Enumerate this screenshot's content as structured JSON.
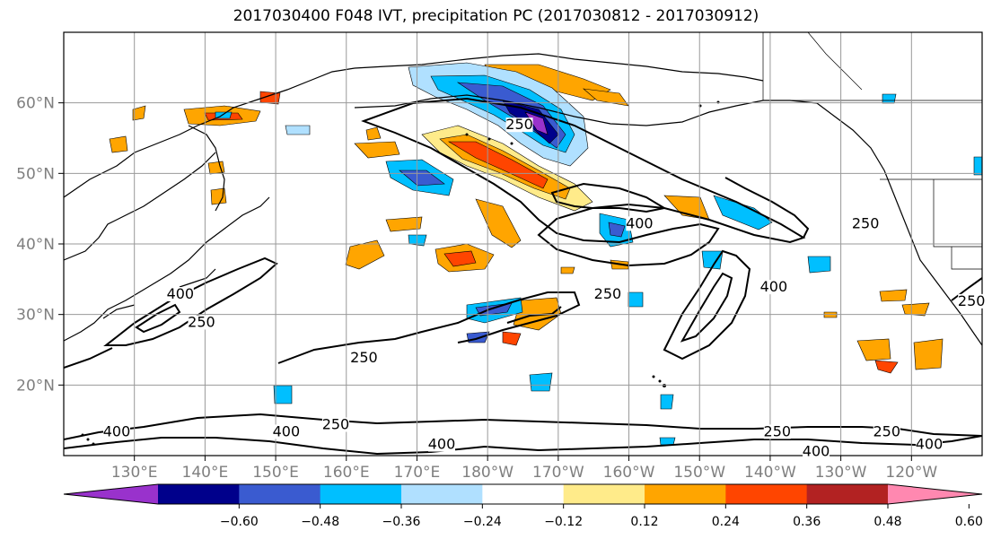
{
  "title": "2017030400 F048 IVT, precipitation PC (2017030812 - 2017030912)",
  "chart_data": {
    "type": "map",
    "lon_range": [
      120,
      250
    ],
    "lat_range": [
      10,
      70
    ],
    "x_ticks": [
      {
        "lon": 130,
        "label": "130°E"
      },
      {
        "lon": 140,
        "label": "140°E"
      },
      {
        "lon": 150,
        "label": "150°E"
      },
      {
        "lon": 160,
        "label": "160°E"
      },
      {
        "lon": 170,
        "label": "170°E"
      },
      {
        "lon": 180,
        "label": "180°W"
      },
      {
        "lon": 190,
        "label": "170°W"
      },
      {
        "lon": 200,
        "label": "160°W"
      },
      {
        "lon": 210,
        "label": "150°W"
      },
      {
        "lon": 220,
        "label": "140°W"
      },
      {
        "lon": 230,
        "label": "130°W"
      },
      {
        "lon": 240,
        "label": "120°W"
      }
    ],
    "y_ticks": [
      {
        "lat": 20,
        "label": "20°N"
      },
      {
        "lat": 30,
        "label": "30°N"
      },
      {
        "lat": 40,
        "label": "40°N"
      },
      {
        "lat": 50,
        "label": "50°N"
      },
      {
        "lat": 60,
        "label": "60°N"
      }
    ],
    "grid": true,
    "colorbar": {
      "colors": [
        "#9932cc",
        "#00008b",
        "#3a5bd0",
        "#00bfff",
        "#b0e0ff",
        "#ffffff",
        "#ffeb8a",
        "#ffa500",
        "#ff4500",
        "#b22222",
        "#ff88b0"
      ],
      "tick_labels": [
        "−0.60",
        "−0.48",
        "−0.36",
        "−0.24",
        "−0.12",
        "0.12",
        "0.24",
        "0.36",
        "0.48",
        "0.60"
      ],
      "extend": "both"
    },
    "contour_labels": [
      {
        "text": "250",
        "lon": 184.5,
        "lat": 56.5
      },
      {
        "text": "400",
        "lon": 220.5,
        "lat": 33.5
      },
      {
        "text": "250",
        "lon": 221.0,
        "lat": 13.0
      },
      {
        "text": "400",
        "lon": 226.5,
        "lat": 10.2
      },
      {
        "text": "400",
        "lon": 201.5,
        "lat": 42.5
      },
      {
        "text": "250",
        "lon": 233.5,
        "lat": 42.5
      },
      {
        "text": "250",
        "lon": 197.0,
        "lat": 32.5
      },
      {
        "text": "250",
        "lon": 162.5,
        "lat": 23.5
      },
      {
        "text": "400",
        "lon": 136.5,
        "lat": 32.5
      },
      {
        "text": "250",
        "lon": 139.5,
        "lat": 28.5
      },
      {
        "text": "400",
        "lon": 127.5,
        "lat": 13.0
      },
      {
        "text": "400",
        "lon": 151.5,
        "lat": 13.0
      },
      {
        "text": "250",
        "lon": 158.5,
        "lat": 14.0
      },
      {
        "text": "400",
        "lon": 173.5,
        "lat": 11.2
      },
      {
        "text": "250",
        "lon": 236.5,
        "lat": 13.0
      },
      {
        "text": "400",
        "lon": 242.5,
        "lat": 11.2
      },
      {
        "text": "250",
        "lon": 248.5,
        "lat": 31.5
      }
    ]
  }
}
